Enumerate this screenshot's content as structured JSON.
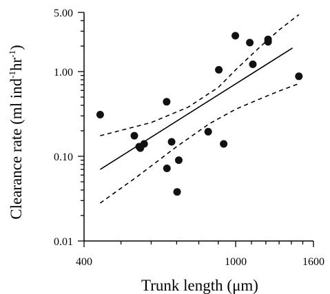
{
  "chart_data": {
    "type": "scatter",
    "xlabel_parts": [
      "Trunk length (",
      "μ",
      "m)"
    ],
    "ylabel_parts": [
      "Clearance rate (ml ind",
      "-1",
      "hr",
      "-1",
      ")"
    ],
    "x_scale": "log",
    "y_scale": "log",
    "xlim": [
      400,
      1600
    ],
    "ylim": [
      0.01,
      5
    ],
    "x_ticks": [
      400,
      1000,
      1600
    ],
    "x_tick_labels": [
      "400",
      "1000",
      "1600"
    ],
    "x_minor_ticks": [
      500,
      600,
      700,
      800,
      900,
      1100,
      1200,
      1300,
      1400,
      1500
    ],
    "y_ticks": [
      0.01,
      0.1,
      1,
      5
    ],
    "y_tick_labels": [
      "0.01",
      "0.10",
      "1.00",
      "5.00"
    ],
    "y_minor_ticks": [
      0.02,
      0.03,
      0.04,
      0.05,
      0.06,
      0.07,
      0.08,
      0.09,
      0.2,
      0.3,
      0.4,
      0.5,
      0.6,
      0.7,
      0.8,
      0.9,
      2,
      3,
      4
    ],
    "grid": false,
    "legend": "none",
    "points": [
      {
        "x": 441,
        "y": 0.31
      },
      {
        "x": 542,
        "y": 0.175
      },
      {
        "x": 558,
        "y": 0.13
      },
      {
        "x": 562,
        "y": 0.125
      },
      {
        "x": 575,
        "y": 0.14
      },
      {
        "x": 659,
        "y": 0.44
      },
      {
        "x": 660,
        "y": 0.072
      },
      {
        "x": 679,
        "y": 0.148
      },
      {
        "x": 702,
        "y": 0.038
      },
      {
        "x": 709,
        "y": 0.09
      },
      {
        "x": 847,
        "y": 0.195
      },
      {
        "x": 903,
        "y": 1.05
      },
      {
        "x": 930,
        "y": 0.14
      },
      {
        "x": 998,
        "y": 2.65
      },
      {
        "x": 1089,
        "y": 2.2
      },
      {
        "x": 1109,
        "y": 1.22
      },
      {
        "x": 1216,
        "y": 2.25
      },
      {
        "x": 1216,
        "y": 2.4
      },
      {
        "x": 1465,
        "y": 0.88
      }
    ],
    "regression": {
      "x": [
        441,
        1410
      ],
      "y": [
        0.07,
        1.9
      ]
    },
    "upper_ci": [
      {
        "x": 441,
        "y": 0.175
      },
      {
        "x": 600,
        "y": 0.25
      },
      {
        "x": 750,
        "y": 0.38
      },
      {
        "x": 900,
        "y": 0.65
      },
      {
        "x": 1000,
        "y": 1.05
      },
      {
        "x": 1150,
        "y": 1.9
      },
      {
        "x": 1300,
        "y": 3.1
      },
      {
        "x": 1465,
        "y": 4.7
      }
    ],
    "lower_ci": [
      {
        "x": 441,
        "y": 0.028
      },
      {
        "x": 550,
        "y": 0.057
      },
      {
        "x": 700,
        "y": 0.13
      },
      {
        "x": 850,
        "y": 0.24
      },
      {
        "x": 1000,
        "y": 0.36
      },
      {
        "x": 1150,
        "y": 0.47
      },
      {
        "x": 1300,
        "y": 0.59
      },
      {
        "x": 1465,
        "y": 0.72
      }
    ]
  }
}
